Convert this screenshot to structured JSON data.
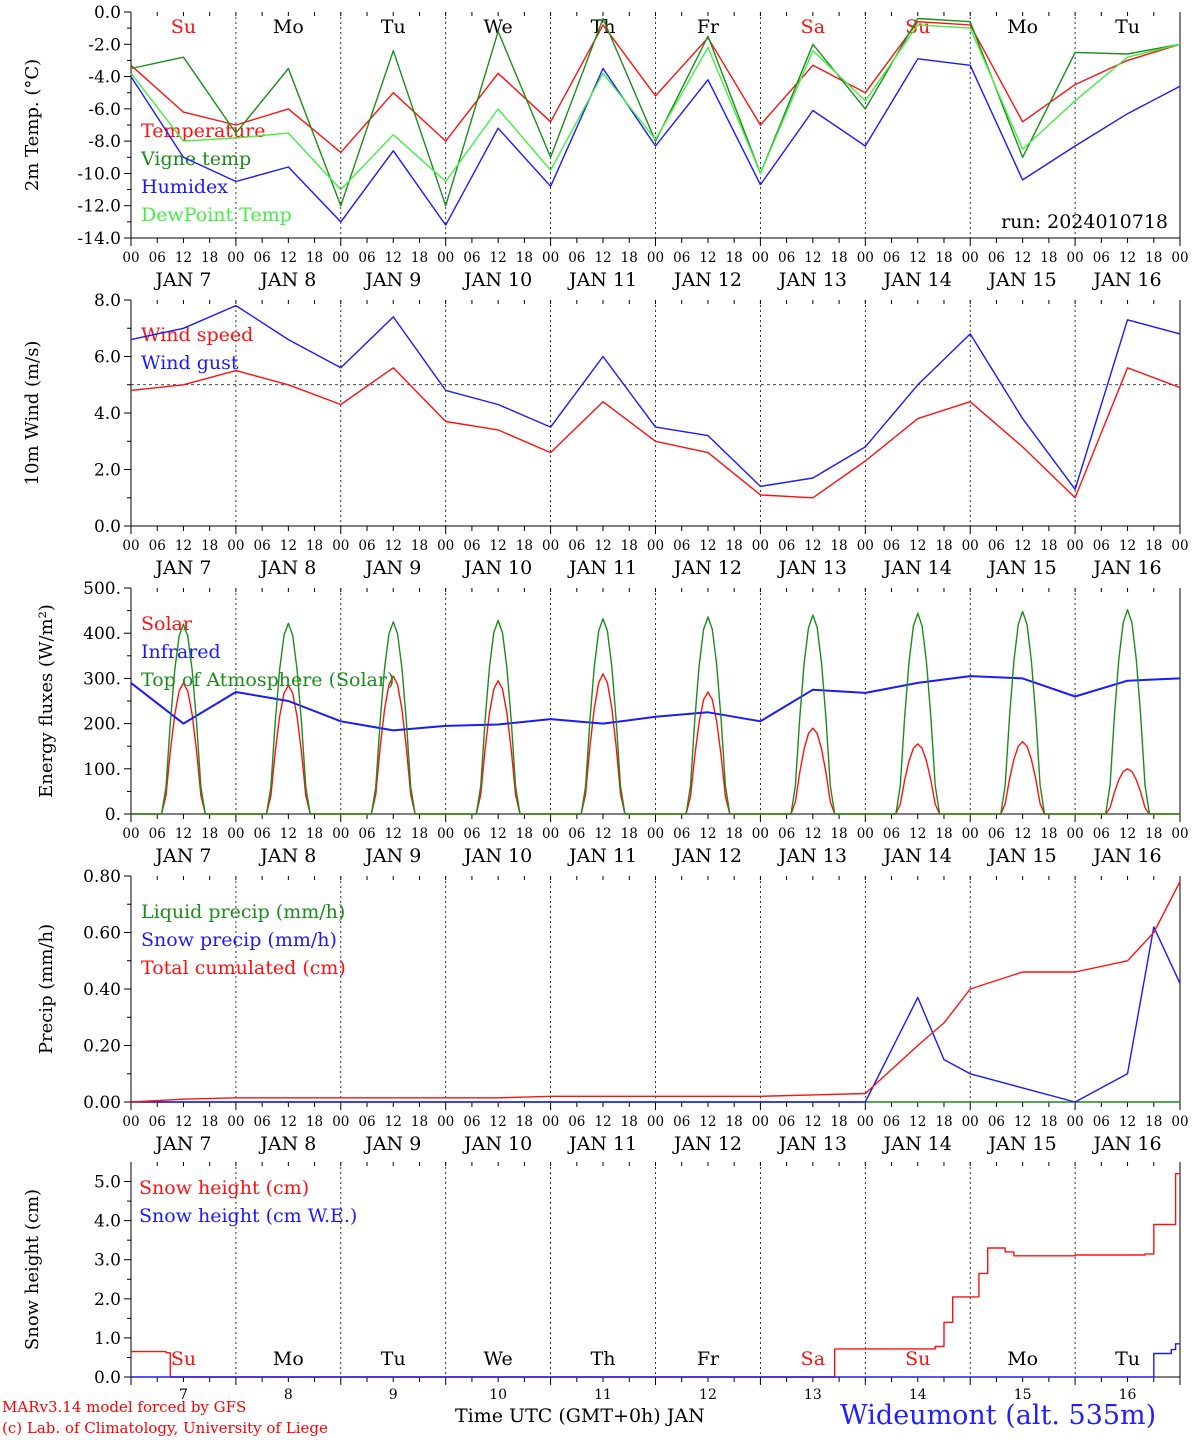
{
  "colors": {
    "red": "#ff1010",
    "green": "#1c8c1c",
    "blue": "#1a1aff",
    "lightgreen": "#44ee44",
    "black": "#000000"
  },
  "days": [
    {
      "abbr": "Su",
      "color": "#ff1010"
    },
    {
      "abbr": "Mo",
      "color": "#000000"
    },
    {
      "abbr": "Tu",
      "color": "#000000"
    },
    {
      "abbr": "We",
      "color": "#000000"
    },
    {
      "abbr": "Th",
      "color": "#000000"
    },
    {
      "abbr": "Fr",
      "color": "#000000"
    },
    {
      "abbr": "Sa",
      "color": "#ff1010"
    },
    {
      "abbr": "Su",
      "color": "#ff1010"
    },
    {
      "abbr": "Mo",
      "color": "#000000"
    },
    {
      "abbr": "Tu",
      "color": "#000000"
    }
  ],
  "date_labels": [
    "JAN  7",
    "JAN  8",
    "JAN  9",
    "JAN 10",
    "JAN 11",
    "JAN 12",
    "JAN 13",
    "JAN 14",
    "JAN 15",
    "JAN 16"
  ],
  "day_numbers": [
    "7",
    "8",
    "9",
    "10",
    "11",
    "12",
    "13",
    "14",
    "15",
    "16"
  ],
  "hour_ticks": [
    "00",
    "06",
    "12",
    "18"
  ],
  "footer": {
    "credit_line1": "MARv3.14 model forced by GFS",
    "credit_line2": "(c) Lab. of Climatology, University of Liege",
    "xaxis_title": "Time UTC (GMT+0h) JAN",
    "station": "Wideumont (alt. 535m)"
  },
  "chart_data": [
    {
      "type": "line",
      "ylabel": "2m Temp. (°C)",
      "ylim": [
        -14,
        0
      ],
      "yticks": [
        "0.0",
        "-2.0",
        "-4.0",
        "-6.0",
        "-8.0",
        "-10.0",
        "-12.0",
        "-14.0"
      ],
      "annotation": "run: 2024010718",
      "day_labels_top": true,
      "x": [
        0,
        12,
        24,
        36,
        48,
        60,
        72,
        84,
        96,
        108,
        120,
        132,
        144,
        156,
        168,
        180,
        192,
        204,
        216,
        228,
        240
      ],
      "series": [
        {
          "name": "Temperature",
          "color": "red",
          "values": [
            -3.3,
            -6.2,
            -7.0,
            -6.0,
            -8.7,
            -5.0,
            -8.0,
            -3.8,
            -6.8,
            -0.8,
            -5.2,
            -1.6,
            -7.0,
            -3.3,
            -5.0,
            -0.6,
            -0.8,
            -6.8,
            -4.5,
            -3.0,
            -2.0
          ]
        },
        {
          "name": "Vigne temp",
          "color": "green",
          "values": [
            -3.5,
            -2.8,
            -7.5,
            -3.5,
            -12.0,
            -2.4,
            -12.0,
            -1.2,
            -9.0,
            -0.4,
            -8.0,
            -1.5,
            -10.0,
            -2.0,
            -6.0,
            -0.4,
            -0.6,
            -9.0,
            -2.5,
            -2.6,
            -2.0
          ]
        },
        {
          "name": "Humidex",
          "color": "blue",
          "values": [
            -4.0,
            -9.0,
            -10.5,
            -9.6,
            -13.0,
            -8.6,
            -13.2,
            -7.2,
            -10.8,
            -3.5,
            -8.3,
            -4.2,
            -10.7,
            -6.1,
            -8.3,
            -2.9,
            -3.3,
            -10.4,
            -8.3,
            -6.3,
            -4.6
          ]
        },
        {
          "name": "DewPoint Temp",
          "color": "lightgreen",
          "values": [
            -3.8,
            -8.0,
            -7.8,
            -7.5,
            -11.0,
            -7.6,
            -10.5,
            -6.0,
            -9.8,
            -3.8,
            -7.9,
            -2.2,
            -10.0,
            -2.4,
            -5.5,
            -0.8,
            -1.0,
            -8.5,
            -5.5,
            -2.8,
            -2.0
          ]
        }
      ]
    },
    {
      "type": "line",
      "ylabel": "10m Wind (m/s)",
      "ylim": [
        0,
        8
      ],
      "yticks": [
        "8.0",
        "6.0",
        "4.0",
        "2.0",
        "0.0"
      ],
      "reference_line": 5.0,
      "x": [
        0,
        12,
        24,
        36,
        48,
        60,
        72,
        84,
        96,
        108,
        120,
        132,
        144,
        156,
        168,
        180,
        192,
        204,
        216,
        228,
        240
      ],
      "series": [
        {
          "name": "Wind speed",
          "color": "red",
          "values": [
            4.8,
            5.0,
            5.5,
            5.0,
            4.3,
            5.6,
            3.7,
            3.4,
            2.6,
            4.4,
            3.0,
            2.6,
            1.1,
            1.0,
            2.3,
            3.8,
            4.4,
            2.8,
            1.0,
            5.6,
            4.9
          ]
        },
        {
          "name": "Wind gust",
          "color": "blue",
          "values": [
            6.6,
            7.0,
            7.8,
            6.6,
            5.6,
            7.4,
            4.8,
            4.3,
            3.5,
            6.0,
            3.5,
            3.2,
            1.4,
            1.7,
            2.8,
            5.0,
            6.8,
            3.8,
            1.3,
            7.3,
            6.8
          ]
        }
      ]
    },
    {
      "type": "line",
      "ylabel": "Energy fluxes (W/m²)",
      "ylim": [
        0,
        500
      ],
      "yticks": [
        "500.",
        "400.",
        "300.",
        "200.",
        "100.",
        "0."
      ],
      "series": [
        {
          "name": "Solar",
          "color": "red",
          "noon_peaks": [
            290,
            285,
            305,
            295,
            310,
            270,
            190,
            155,
            160,
            100
          ]
        },
        {
          "name": "Infrared",
          "color": "blue",
          "x": [
            0,
            12,
            24,
            36,
            48,
            60,
            72,
            84,
            96,
            108,
            120,
            132,
            144,
            156,
            168,
            180,
            192,
            204,
            216,
            228,
            240
          ],
          "values": [
            290,
            200,
            270,
            250,
            205,
            185,
            195,
            198,
            210,
            200,
            215,
            225,
            205,
            275,
            268,
            290,
            305,
            300,
            260,
            295,
            300
          ]
        },
        {
          "name": "Top of Atmosphere (Solar)",
          "color": "green",
          "noon_peaks": [
            420,
            422,
            425,
            428,
            432,
            436,
            440,
            444,
            448,
            452
          ]
        }
      ]
    },
    {
      "type": "line",
      "ylabel": "Precip (mm/h)",
      "ylim": [
        0,
        0.8
      ],
      "yticks": [
        "0.80",
        "0.60",
        "0.40",
        "0.20",
        "0.00"
      ],
      "x": [
        0,
        12,
        24,
        36,
        48,
        60,
        72,
        84,
        96,
        108,
        120,
        132,
        144,
        156,
        168,
        180,
        186,
        192,
        204,
        216,
        228,
        234,
        240
      ],
      "series": [
        {
          "name": "Liquid precip (mm/h)",
          "color": "green",
          "values": [
            0,
            0,
            0,
            0,
            0,
            0,
            0,
            0,
            0,
            0,
            0,
            0,
            0,
            0,
            0,
            0,
            0,
            0,
            0,
            0,
            0,
            0,
            0
          ]
        },
        {
          "name": "Snow precip (mm/h)",
          "color": "blue",
          "values": [
            0.0,
            0.0,
            0.0,
            0.0,
            0.0,
            0.0,
            0.0,
            0.0,
            0.0,
            0.0,
            0.0,
            0.0,
            0.0,
            0.0,
            0.0,
            0.37,
            0.15,
            0.1,
            0.05,
            0.0,
            0.1,
            0.62,
            0.42
          ]
        },
        {
          "name": "Total cumulated (cm)",
          "color": "red",
          "values": [
            0.0,
            0.01,
            0.015,
            0.015,
            0.015,
            0.015,
            0.015,
            0.015,
            0.02,
            0.02,
            0.02,
            0.02,
            0.02,
            0.025,
            0.03,
            0.2,
            0.28,
            0.4,
            0.46,
            0.46,
            0.5,
            0.6,
            0.78
          ]
        }
      ]
    },
    {
      "type": "line",
      "ylabel": "Snow height (cm)",
      "ylim": [
        0,
        5.5
      ],
      "yticks": [
        "5.0",
        "4.0",
        "3.0",
        "2.0",
        "1.0",
        "0.0"
      ],
      "day_labels_bottom": true,
      "x": [
        0,
        8,
        9,
        160,
        161,
        184,
        186,
        188,
        190,
        194,
        196,
        200,
        202,
        204,
        206,
        216,
        232,
        234,
        238,
        239,
        240
      ],
      "series": [
        {
          "name": "Snow height (cm)",
          "color": "red",
          "values": [
            0.65,
            0.62,
            0.0,
            0.0,
            0.72,
            0.78,
            1.4,
            2.05,
            2.05,
            2.65,
            3.3,
            3.2,
            3.1,
            3.1,
            3.1,
            3.12,
            3.15,
            3.9,
            3.9,
            5.2,
            5.2
          ]
        },
        {
          "name": "Snow height (cm W.E.)",
          "color": "blue",
          "values": [
            0,
            0,
            0,
            0,
            0,
            0,
            0,
            0,
            0,
            0,
            0,
            0,
            0,
            0,
            0,
            0,
            0,
            0.6,
            0.7,
            0.85,
            0.85
          ]
        }
      ]
    }
  ]
}
